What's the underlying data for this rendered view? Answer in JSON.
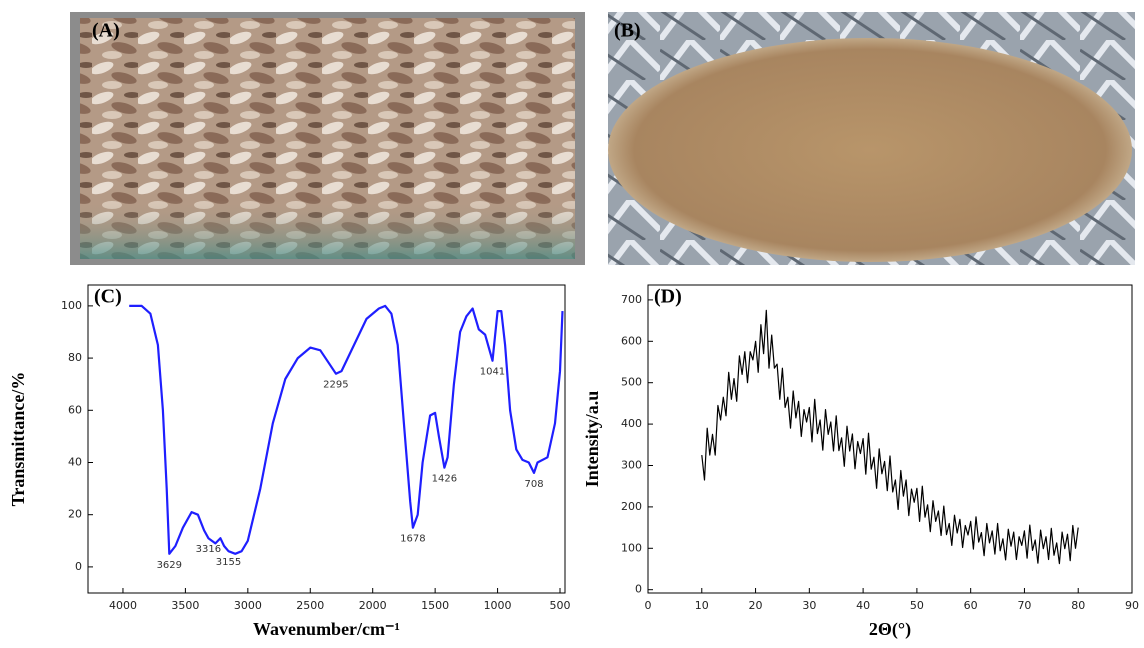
{
  "photos": [
    {
      "label": "(A)"
    },
    {
      "label": "(B)"
    }
  ],
  "chart_data": [
    {
      "type": "line",
      "panel_label": "(C)",
      "x_label": "Wavenumber/cm⁻¹",
      "y_label": "Transmittance/%",
      "color": "#1f1fff",
      "xlim": [
        4280,
        460
      ],
      "xticks": [
        4000,
        3500,
        3000,
        2500,
        2000,
        1500,
        1000,
        500
      ],
      "ylim": [
        -10,
        108
      ],
      "yticks": [
        0,
        20,
        40,
        60,
        80,
        100
      ],
      "x": [
        3950,
        3850,
        3780,
        3720,
        3680,
        3650,
        3629,
        3580,
        3520,
        3450,
        3400,
        3350,
        3316,
        3260,
        3220,
        3190,
        3155,
        3100,
        3050,
        3000,
        2900,
        2800,
        2700,
        2600,
        2500,
        2420,
        2350,
        2295,
        2250,
        2150,
        2050,
        1950,
        1900,
        1850,
        1800,
        1750,
        1700,
        1678,
        1640,
        1600,
        1540,
        1500,
        1470,
        1426,
        1400,
        1350,
        1300,
        1250,
        1200,
        1150,
        1100,
        1041,
        1000,
        970,
        940,
        900,
        850,
        800,
        750,
        708,
        680,
        600,
        540,
        500,
        480
      ],
      "values": [
        100,
        100,
        97,
        85,
        60,
        30,
        5,
        8,
        15,
        21,
        20,
        14,
        11,
        9,
        11,
        8,
        6,
        5,
        6,
        10,
        30,
        55,
        72,
        80,
        84,
        83,
        78,
        74,
        75,
        85,
        95,
        99,
        100,
        97,
        85,
        55,
        25,
        15,
        20,
        40,
        58,
        59,
        50,
        38,
        42,
        70,
        90,
        96,
        99,
        91,
        89,
        79,
        98,
        98,
        85,
        60,
        45,
        41,
        40,
        36,
        40,
        42,
        55,
        75,
        98
      ],
      "annotations": [
        {
          "x": 3629,
          "y": 5
        },
        {
          "x": 3316,
          "y": 11
        },
        {
          "x": 3155,
          "y": 6
        },
        {
          "x": 2295,
          "y": 74
        },
        {
          "x": 1678,
          "y": 15
        },
        {
          "x": 1426,
          "y": 38
        },
        {
          "x": 1041,
          "y": 79
        },
        {
          "x": 708,
          "y": 36
        }
      ]
    },
    {
      "type": "line",
      "panel_label": "(D)",
      "x_label": "2Θ(°)",
      "y_label": "Intensity/a.u",
      "color": "#000000",
      "xlim": [
        0,
        90
      ],
      "xticks": [
        0,
        10,
        20,
        30,
        40,
        50,
        60,
        70,
        80,
        90
      ],
      "ylim": [
        -8,
        736
      ],
      "yticks": [
        0,
        100,
        200,
        300,
        400,
        500,
        600,
        700
      ],
      "x": [
        10,
        10.5,
        11,
        11.5,
        12,
        12.5,
        13,
        13.5,
        14,
        14.5,
        15,
        15.5,
        16,
        16.5,
        17,
        17.5,
        18,
        18.5,
        19,
        19.5,
        20,
        20.5,
        21,
        21.5,
        22,
        22.5,
        23,
        23.5,
        24,
        24.5,
        25,
        25.5,
        26,
        26.5,
        27,
        27.5,
        28,
        28.5,
        29,
        29.5,
        30,
        30.5,
        31,
        31.5,
        32,
        32.5,
        33,
        33.5,
        34,
        34.5,
        35,
        35.5,
        36,
        36.5,
        37,
        37.5,
        38,
        38.5,
        39,
        39.5,
        40,
        40.5,
        41,
        41.5,
        42,
        42.5,
        43,
        43.5,
        44,
        44.5,
        45,
        45.5,
        46,
        46.5,
        47,
        47.5,
        48,
        48.5,
        49,
        49.5,
        50,
        50.5,
        51,
        51.5,
        52,
        52.5,
        53,
        53.5,
        54,
        54.5,
        55,
        55.5,
        56,
        56.5,
        57,
        57.5,
        58,
        58.5,
        59,
        59.5,
        60,
        60.5,
        61,
        61.5,
        62,
        62.5,
        63,
        63.5,
        64,
        64.5,
        65,
        65.5,
        66,
        66.5,
        67,
        67.5,
        68,
        68.5,
        69,
        69.5,
        70,
        70.5,
        71,
        71.5,
        72,
        72.5,
        73,
        73.5,
        74,
        74.5,
        75,
        75.5,
        76,
        76.5,
        77,
        77.5,
        78,
        78.5,
        79,
        79.5,
        80
      ],
      "values": [
        325,
        265,
        390,
        325,
        375,
        325,
        445,
        410,
        465,
        420,
        525,
        460,
        510,
        455,
        565,
        520,
        575,
        500,
        575,
        555,
        600,
        525,
        640,
        570,
        675,
        535,
        615,
        535,
        545,
        460,
        535,
        440,
        465,
        390,
        480,
        415,
        455,
        370,
        435,
        405,
        440,
        357,
        460,
        377,
        410,
        337,
        435,
        375,
        405,
        335,
        420,
        336,
        367,
        298,
        395,
        335,
        376,
        292,
        358,
        329,
        365,
        279,
        378,
        291,
        320,
        245,
        340,
        280,
        310,
        239,
        323,
        236,
        265,
        194,
        288,
        226,
        265,
        179,
        243,
        211,
        245,
        165,
        250,
        175,
        205,
        140,
        215,
        165,
        190,
        131,
        202,
        133,
        160,
        107,
        180,
        137,
        170,
        102,
        155,
        132,
        165,
        98,
        176,
        115,
        138,
        82,
        160,
        113,
        142,
        86,
        160,
        94,
        123,
        72,
        146,
        105,
        139,
        73,
        128,
        107,
        142,
        76,
        156,
        95,
        120,
        64,
        144,
        99,
        128,
        73,
        148,
        83,
        113,
        63,
        139,
        99,
        134,
        70,
        155,
        100,
        150
      ]
    }
  ]
}
